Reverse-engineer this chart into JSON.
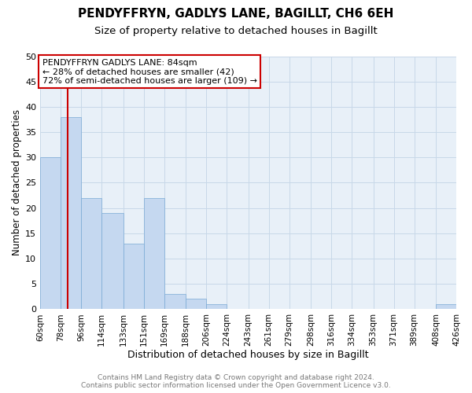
{
  "title": "PENDYFFRYN, GADLYS LANE, BAGILLT, CH6 6EH",
  "subtitle": "Size of property relative to detached houses in Bagillt",
  "xlabel": "Distribution of detached houses by size in Bagillt",
  "ylabel": "Number of detached properties",
  "bin_edges": [
    60,
    78,
    96,
    114,
    133,
    151,
    169,
    188,
    206,
    224,
    243,
    261,
    279,
    298,
    316,
    334,
    353,
    371,
    389,
    408,
    426
  ],
  "bar_heights": [
    30,
    38,
    22,
    19,
    13,
    22,
    3,
    2,
    1,
    0,
    0,
    0,
    0,
    0,
    0,
    0,
    0,
    0,
    0,
    1
  ],
  "bar_color": "#c5d8f0",
  "bar_edge_color": "#7aaad4",
  "bar_linewidth": 0.5,
  "vline_x": 84,
  "vline_color": "#cc0000",
  "vline_linewidth": 1.5,
  "annotation_text": "PENDYFFRYN GADLYS LANE: 84sqm\n← 28% of detached houses are smaller (42)\n72% of semi-detached houses are larger (109) →",
  "annotation_box_color": "#ffffff",
  "annotation_box_edgecolor": "#cc0000",
  "annotation_fontsize": 8,
  "ylim": [
    0,
    50
  ],
  "yticks": [
    0,
    5,
    10,
    15,
    20,
    25,
    30,
    35,
    40,
    45,
    50
  ],
  "tick_labels": [
    "60sqm",
    "78sqm",
    "96sqm",
    "114sqm",
    "133sqm",
    "151sqm",
    "169sqm",
    "188sqm",
    "206sqm",
    "224sqm",
    "243sqm",
    "261sqm",
    "279sqm",
    "298sqm",
    "316sqm",
    "334sqm",
    "353sqm",
    "371sqm",
    "389sqm",
    "408sqm",
    "426sqm"
  ],
  "grid_color": "#c8d8e8",
  "plot_bg_color": "#e8f0f8",
  "figure_bg_color": "#ffffff",
  "footer_line1": "Contains HM Land Registry data © Crown copyright and database right 2024.",
  "footer_line2": "Contains public sector information licensed under the Open Government Licence v3.0.",
  "title_fontsize": 11,
  "subtitle_fontsize": 9.5,
  "xlabel_fontsize": 9,
  "ylabel_fontsize": 8.5,
  "footer_fontsize": 6.5,
  "tick_fontsize": 7.5,
  "ytick_fontsize": 8
}
